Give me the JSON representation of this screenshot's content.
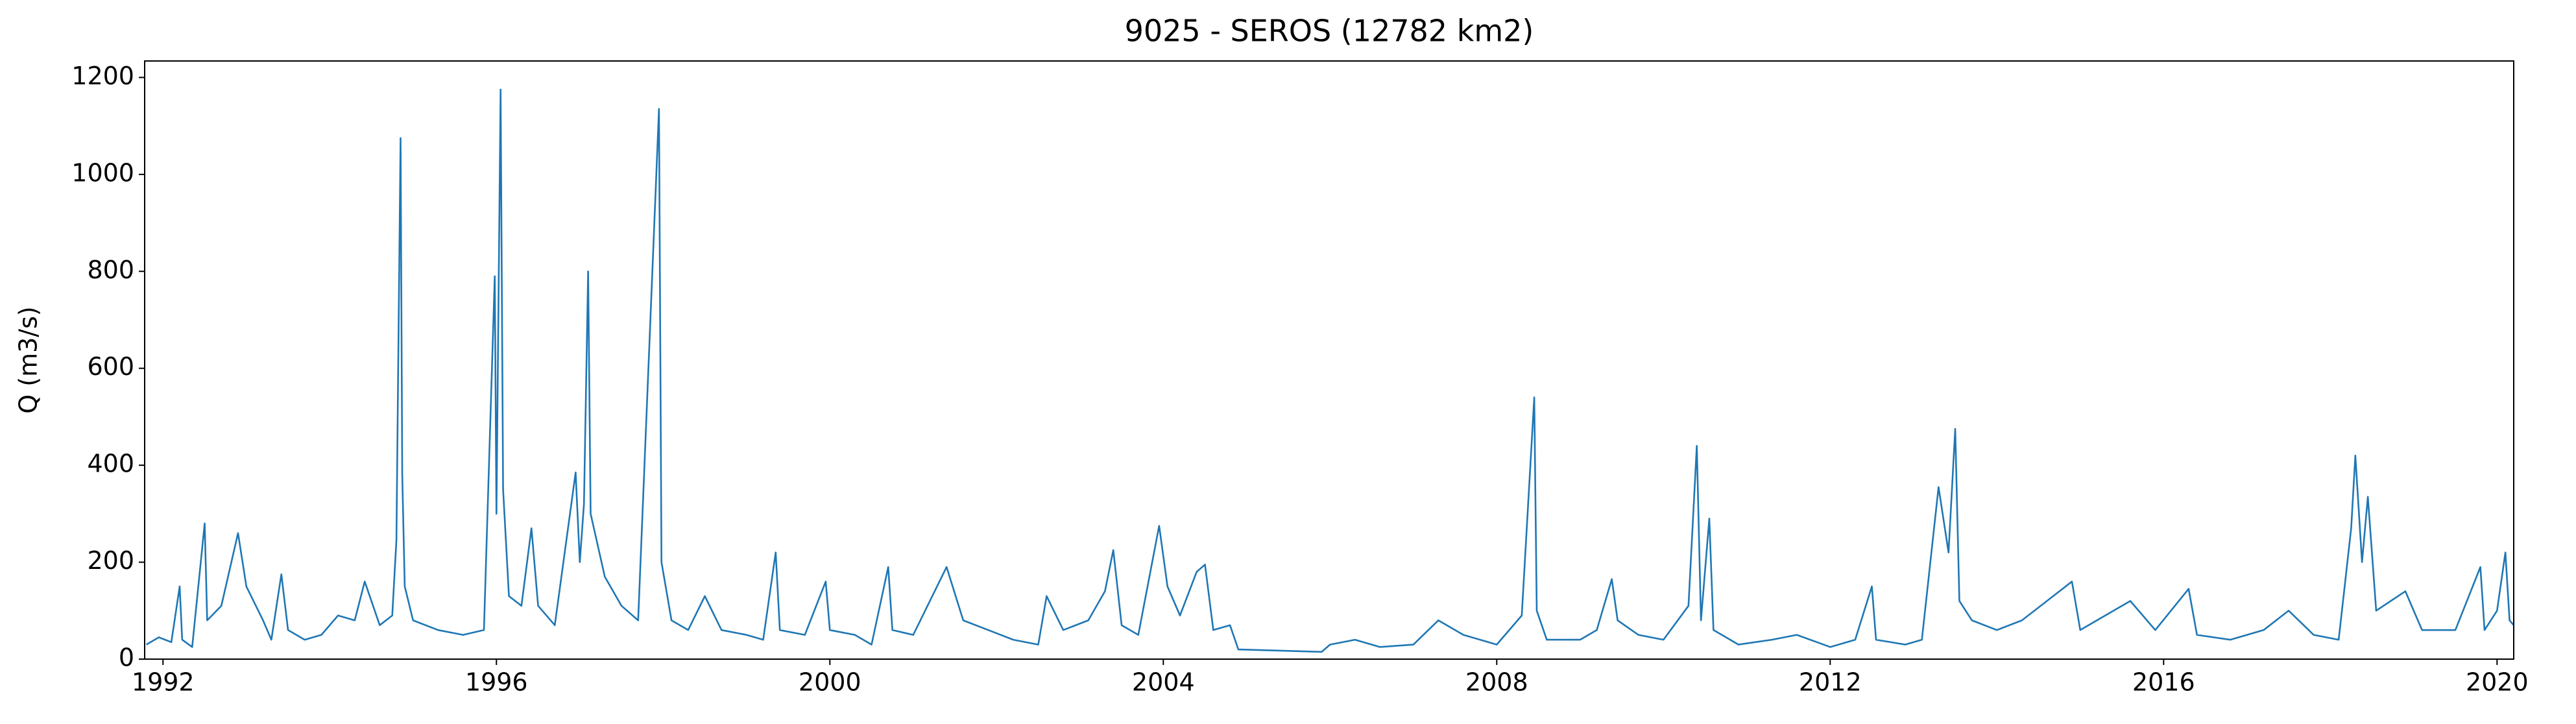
{
  "chart_data": {
    "type": "line",
    "title": "9025 - SEROS (12782 km2)",
    "y_label": "Q (m3/s)",
    "color": "#1f77b4",
    "xlim": [
      1991.78,
      2020.2
    ],
    "xticks": [
      1992,
      1996,
      2000,
      2004,
      2008,
      2012,
      2016,
      2020
    ],
    "ylim": [
      0,
      1234
    ],
    "yticks": [
      0,
      200,
      400,
      600,
      800,
      1000,
      1200
    ],
    "x": [
      1991.8,
      1991.95,
      1992.1,
      1992.2,
      1992.23,
      1992.35,
      1992.5,
      1992.53,
      1992.7,
      1992.9,
      1993.0,
      1993.2,
      1993.3,
      1993.42,
      1993.5,
      1993.7,
      1993.9,
      1994.1,
      1994.3,
      1994.42,
      1994.6,
      1994.75,
      1994.8,
      1994.85,
      1994.87,
      1994.9,
      1995.0,
      1995.3,
      1995.6,
      1995.85,
      1995.98,
      1996.0,
      1996.05,
      1996.08,
      1996.15,
      1996.3,
      1996.42,
      1996.5,
      1996.7,
      1996.95,
      1997.0,
      1997.05,
      1997.1,
      1997.13,
      1997.3,
      1997.5,
      1997.7,
      1997.95,
      1997.98,
      1998.1,
      1998.3,
      1998.5,
      1998.7,
      1999.0,
      1999.2,
      1999.35,
      1999.4,
      1999.7,
      1999.95,
      2000.0,
      2000.3,
      2000.5,
      2000.7,
      2000.75,
      2001.0,
      2001.2,
      2001.4,
      2001.6,
      2001.9,
      2002.2,
      2002.5,
      2002.6,
      2002.8,
      2003.1,
      2003.3,
      2003.4,
      2003.5,
      2003.7,
      2003.95,
      2004.05,
      2004.2,
      2004.4,
      2004.5,
      2004.6,
      2004.8,
      2004.9,
      2005.5,
      2005.9,
      2006.0,
      2006.3,
      2006.6,
      2007.0,
      2007.3,
      2007.6,
      2008.0,
      2008.3,
      2008.45,
      2008.48,
      2008.6,
      2009.0,
      2009.2,
      2009.38,
      2009.45,
      2009.7,
      2010.0,
      2010.3,
      2010.4,
      2010.45,
      2010.55,
      2010.6,
      2010.9,
      2011.3,
      2011.6,
      2012.0,
      2012.3,
      2012.5,
      2012.55,
      2012.9,
      2013.1,
      2013.3,
      2013.42,
      2013.5,
      2013.55,
      2013.7,
      2014.0,
      2014.3,
      2014.6,
      2014.9,
      2015.0,
      2015.3,
      2015.6,
      2015.9,
      2016.3,
      2016.4,
      2016.8,
      2017.2,
      2017.5,
      2017.8,
      2018.1,
      2018.25,
      2018.3,
      2018.38,
      2018.45,
      2018.55,
      2018.9,
      2019.1,
      2019.5,
      2019.8,
      2019.85,
      2020.0,
      2020.1,
      2020.15,
      2020.2
    ],
    "values": [
      30,
      45,
      35,
      150,
      40,
      25,
      280,
      80,
      110,
      260,
      150,
      80,
      40,
      175,
      60,
      40,
      50,
      90,
      80,
      160,
      70,
      90,
      245,
      1075,
      380,
      150,
      80,
      60,
      50,
      60,
      790,
      300,
      1175,
      350,
      130,
      110,
      270,
      110,
      70,
      385,
      200,
      320,
      800,
      300,
      170,
      110,
      80,
      1135,
      200,
      80,
      60,
      130,
      60,
      50,
      40,
      220,
      60,
      50,
      160,
      60,
      50,
      30,
      190,
      60,
      50,
      120,
      190,
      80,
      60,
      40,
      30,
      130,
      60,
      80,
      140,
      225,
      70,
      50,
      275,
      150,
      90,
      180,
      195,
      60,
      70,
      20,
      17,
      15,
      30,
      40,
      25,
      30,
      80,
      50,
      30,
      90,
      540,
      100,
      40,
      40,
      60,
      165,
      80,
      50,
      40,
      110,
      440,
      80,
      290,
      60,
      30,
      40,
      50,
      25,
      40,
      150,
      40,
      30,
      40,
      355,
      220,
      475,
      120,
      80,
      60,
      80,
      120,
      160,
      60,
      90,
      120,
      60,
      145,
      50,
      40,
      60,
      100,
      50,
      40,
      270,
      420,
      200,
      335,
      100,
      140,
      60,
      60,
      190,
      60,
      100,
      220,
      80,
      70
    ]
  }
}
